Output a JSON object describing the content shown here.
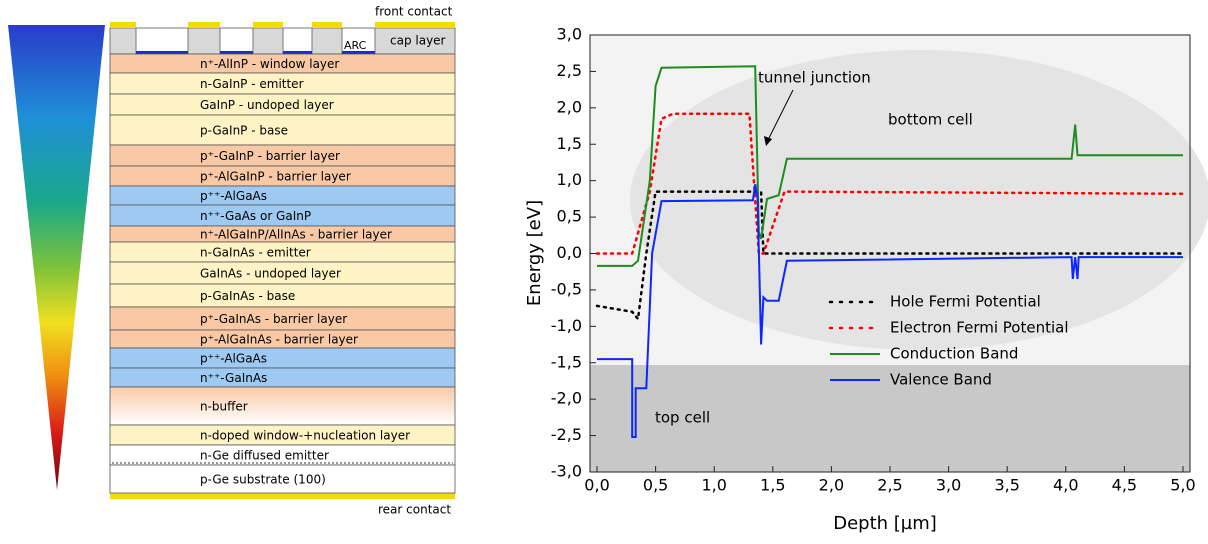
{
  "diagram": {
    "front_contact": "front contact",
    "cap_layer": "cap layer",
    "arc": "ARC",
    "rear_contact": "rear contact",
    "layers": [
      {
        "label": "n⁺-AlInP - window layer",
        "color": "#f9c9a6"
      },
      {
        "label": "n-GaInP - emitter",
        "color": "#fdf3c4"
      },
      {
        "label": "GaInP - undoped layer",
        "color": "#fdf3c4"
      },
      {
        "label": "p-GaInP - base",
        "color": "#fdf3c4"
      },
      {
        "label": "p⁺-GaInP - barrier layer",
        "color": "#f9c9a6"
      },
      {
        "label": "p⁺-AlGaInP - barrier layer",
        "color": "#f9c9a6"
      },
      {
        "label": "p⁺⁺-AlGaAs",
        "color": "#9ec9f2"
      },
      {
        "label": "n⁺⁺-GaAs or GaInP",
        "color": "#9ec9f2"
      },
      {
        "label": "n⁺-AlGaInP/AlInAs - barrier layer",
        "color": "#f9c9a6"
      },
      {
        "label": "n-GaInAs - emitter",
        "color": "#fdf3c4"
      },
      {
        "label": "GaInAs - undoped layer",
        "color": "#fdf3c4"
      },
      {
        "label": "p-GaInAs - base",
        "color": "#fdf3c4"
      },
      {
        "label": "p⁺-GaInAs - barrier layer",
        "color": "#f9c9a6"
      },
      {
        "label": "p⁺-AlGaInAs - barrier layer",
        "color": "#f9c9a6"
      },
      {
        "label": "p⁺⁺-AlGaAs",
        "color": "#9ec9f2"
      },
      {
        "label": "n⁺⁺-GaInAs",
        "color": "#9ec9f2"
      },
      {
        "label": "n-buffer",
        "color": "#fbd9bd"
      },
      {
        "label": "n-doped  window-+nucleation layer",
        "color": "#fdf3c4"
      },
      {
        "label": "n-Ge diffused emitter",
        "color": "#ffffff"
      },
      {
        "label": "p-Ge substrate (100)",
        "color": "#ffffff"
      }
    ]
  },
  "chart_data": {
    "type": "line",
    "x_label": "Depth [µm]",
    "y_label": "Energy [eV]",
    "annotations": [
      "tunnel junction",
      "bottom cell",
      "top cell"
    ],
    "xlim": [
      -0.06,
      5.06
    ],
    "ylim": [
      -3,
      3
    ],
    "xticks": [
      {
        "value": 0,
        "label": "0,0"
      },
      {
        "value": 0.5,
        "label": "0,5"
      },
      {
        "value": 1,
        "label": "1,0"
      },
      {
        "value": 1.5,
        "label": "1,5"
      },
      {
        "value": 2,
        "label": "2,0"
      },
      {
        "value": 2.5,
        "label": "2,5"
      },
      {
        "value": 3,
        "label": "3,0"
      },
      {
        "value": 3.5,
        "label": "3,5"
      },
      {
        "value": 4,
        "label": "4,0"
      },
      {
        "value": 4.5,
        "label": "4,5"
      },
      {
        "value": 5,
        "label": "5,0"
      }
    ],
    "yticks": [
      {
        "value": -3,
        "label": "-3,0"
      },
      {
        "value": -2.5,
        "label": "-2,5"
      },
      {
        "value": -2,
        "label": "-2,0"
      },
      {
        "value": -1.5,
        "label": "-1,5"
      },
      {
        "value": -1,
        "label": "-1,0"
      },
      {
        "value": -0.5,
        "label": "-0,5"
      },
      {
        "value": 0,
        "label": "0,0"
      },
      {
        "value": 0.5,
        "label": "0,5"
      },
      {
        "value": 1,
        "label": "1,0"
      },
      {
        "value": 1.5,
        "label": "1,5"
      },
      {
        "value": 2,
        "label": "2,0"
      },
      {
        "value": 2.5,
        "label": "2,5"
      },
      {
        "value": 3,
        "label": "3,0"
      }
    ],
    "series": [
      {
        "name": "Hole Fermi Potential",
        "color": "#000000",
        "dash": "dotted",
        "x": [
          0,
          0.3,
          0.35,
          0.42,
          0.5,
          1.4,
          1.42,
          5.0
        ],
        "values": [
          -0.72,
          -0.8,
          -0.9,
          0,
          0.85,
          0.85,
          0,
          0
        ]
      },
      {
        "name": "Electron Fermi Potential",
        "color": "#ff0000",
        "dash": "dotted",
        "x": [
          0,
          0.3,
          0.45,
          0.55,
          0.65,
          1.3,
          1.38,
          1.42,
          1.6,
          5.0
        ],
        "values": [
          0,
          0,
          0.85,
          1.85,
          1.92,
          1.92,
          0,
          0,
          0.85,
          0.82
        ]
      },
      {
        "name": "Conduction Band",
        "color": "#1e8c1e",
        "dash": "solid",
        "x": [
          0,
          0.3,
          0.35,
          0.45,
          0.5,
          0.55,
          1.35,
          1.38,
          1.4,
          1.45,
          1.55,
          1.62,
          4.05,
          4.08,
          4.1,
          5.0
        ],
        "values": [
          -0.17,
          -0.17,
          -0.1,
          1.0,
          2.3,
          2.55,
          2.57,
          0.3,
          0.2,
          0.75,
          0.8,
          1.3,
          1.3,
          1.77,
          1.35,
          1.35
        ]
      },
      {
        "name": "Valence Band",
        "color": "#0a28ff",
        "dash": "solid",
        "x": [
          0,
          0.3,
          0.3,
          0.33,
          0.33,
          0.42,
          0.47,
          0.55,
          1.33,
          1.35,
          1.37,
          1.4,
          1.42,
          1.45,
          1.55,
          1.62,
          4.05,
          4.06,
          4.08,
          4.1,
          4.11,
          5.0
        ],
        "values": [
          -1.45,
          -1.45,
          -2.52,
          -2.52,
          -1.85,
          -1.85,
          0,
          0.72,
          0.73,
          0.95,
          0.75,
          -1.25,
          -0.6,
          -0.65,
          -0.65,
          -0.1,
          -0.05,
          -0.35,
          -0.05,
          -0.35,
          -0.05,
          -0.05
        ]
      }
    ]
  }
}
